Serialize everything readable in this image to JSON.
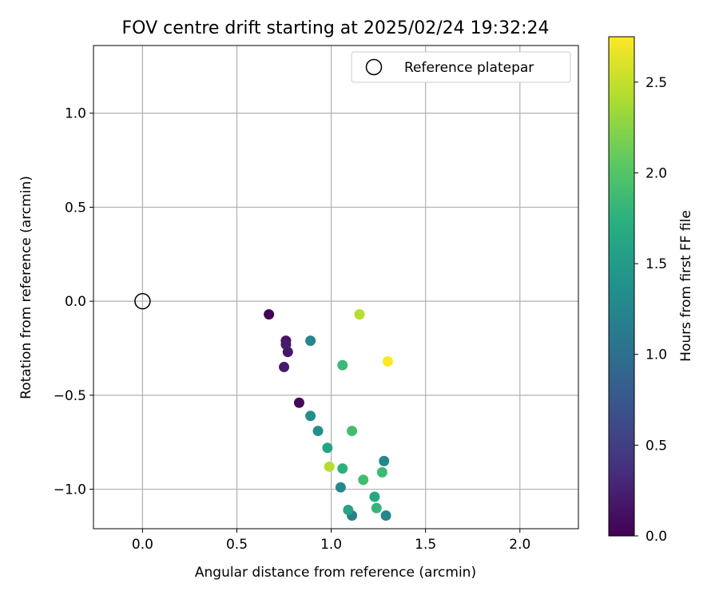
{
  "chart_data": {
    "type": "scatter",
    "title": "FOV centre drift starting at 2025/02/24 19:32:24",
    "xlabel": "Angular distance from reference (arcmin)",
    "ylabel": "Rotation from reference (arcmin)",
    "xlim": [
      -0.26,
      2.31
    ],
    "ylim": [
      -1.21,
      1.36
    ],
    "xticks": [
      0.0,
      0.5,
      1.0,
      1.5,
      2.0
    ],
    "yticks": [
      -1.0,
      -0.5,
      0.0,
      0.5,
      1.0
    ],
    "xtick_labels": [
      "0.0",
      "0.5",
      "1.0",
      "1.5",
      "2.0"
    ],
    "ytick_labels": [
      "−1.0",
      "−0.5",
      "0.0",
      "0.5",
      "1.0"
    ],
    "grid": true,
    "legend": {
      "label": "Reference platepar",
      "placement": "top-right"
    },
    "reference_point": {
      "x": 0.0,
      "y": 0.0
    },
    "colorbar": {
      "label": "Hours from first FF file",
      "colormap": "viridis",
      "range": [
        0.0,
        2.75
      ],
      "ticks": [
        0.0,
        0.5,
        1.0,
        1.5,
        2.0,
        2.5
      ],
      "tick_labels": [
        "0.0",
        "0.5",
        "1.0",
        "1.5",
        "2.0",
        "2.5"
      ]
    },
    "points": [
      {
        "x": 0.67,
        "y": -0.07,
        "hours": 0.0
      },
      {
        "x": 0.83,
        "y": -0.54,
        "hours": 0.05
      },
      {
        "x": 0.76,
        "y": -0.21,
        "hours": 0.15
      },
      {
        "x": 0.77,
        "y": -0.27,
        "hours": 0.17
      },
      {
        "x": 0.75,
        "y": -0.35,
        "hours": 0.2
      },
      {
        "x": 0.76,
        "y": -0.23,
        "hours": 0.22
      },
      {
        "x": 1.11,
        "y": -1.14,
        "hours": 1.2
      },
      {
        "x": 1.29,
        "y": -1.14,
        "hours": 1.25
      },
      {
        "x": 1.28,
        "y": -0.85,
        "hours": 1.25
      },
      {
        "x": 0.89,
        "y": -0.21,
        "hours": 1.25
      },
      {
        "x": 1.05,
        "y": -0.99,
        "hours": 1.3
      },
      {
        "x": 0.93,
        "y": -0.69,
        "hours": 1.35
      },
      {
        "x": 0.89,
        "y": -0.61,
        "hours": 1.35
      },
      {
        "x": 0.98,
        "y": -0.78,
        "hours": 1.6
      },
      {
        "x": 1.09,
        "y": -1.11,
        "hours": 1.6
      },
      {
        "x": 1.23,
        "y": -1.04,
        "hours": 1.65
      },
      {
        "x": 1.06,
        "y": -0.89,
        "hours": 1.75
      },
      {
        "x": 1.24,
        "y": -1.1,
        "hours": 1.8
      },
      {
        "x": 1.27,
        "y": -0.91,
        "hours": 1.85
      },
      {
        "x": 1.06,
        "y": -0.34,
        "hours": 1.85
      },
      {
        "x": 1.11,
        "y": -0.69,
        "hours": 1.9
      },
      {
        "x": 1.17,
        "y": -0.95,
        "hours": 1.9
      },
      {
        "x": 0.99,
        "y": -0.88,
        "hours": 2.45
      },
      {
        "x": 1.15,
        "y": -0.07,
        "hours": 2.45
      },
      {
        "x": 1.3,
        "y": -0.32,
        "hours": 2.75
      }
    ]
  }
}
